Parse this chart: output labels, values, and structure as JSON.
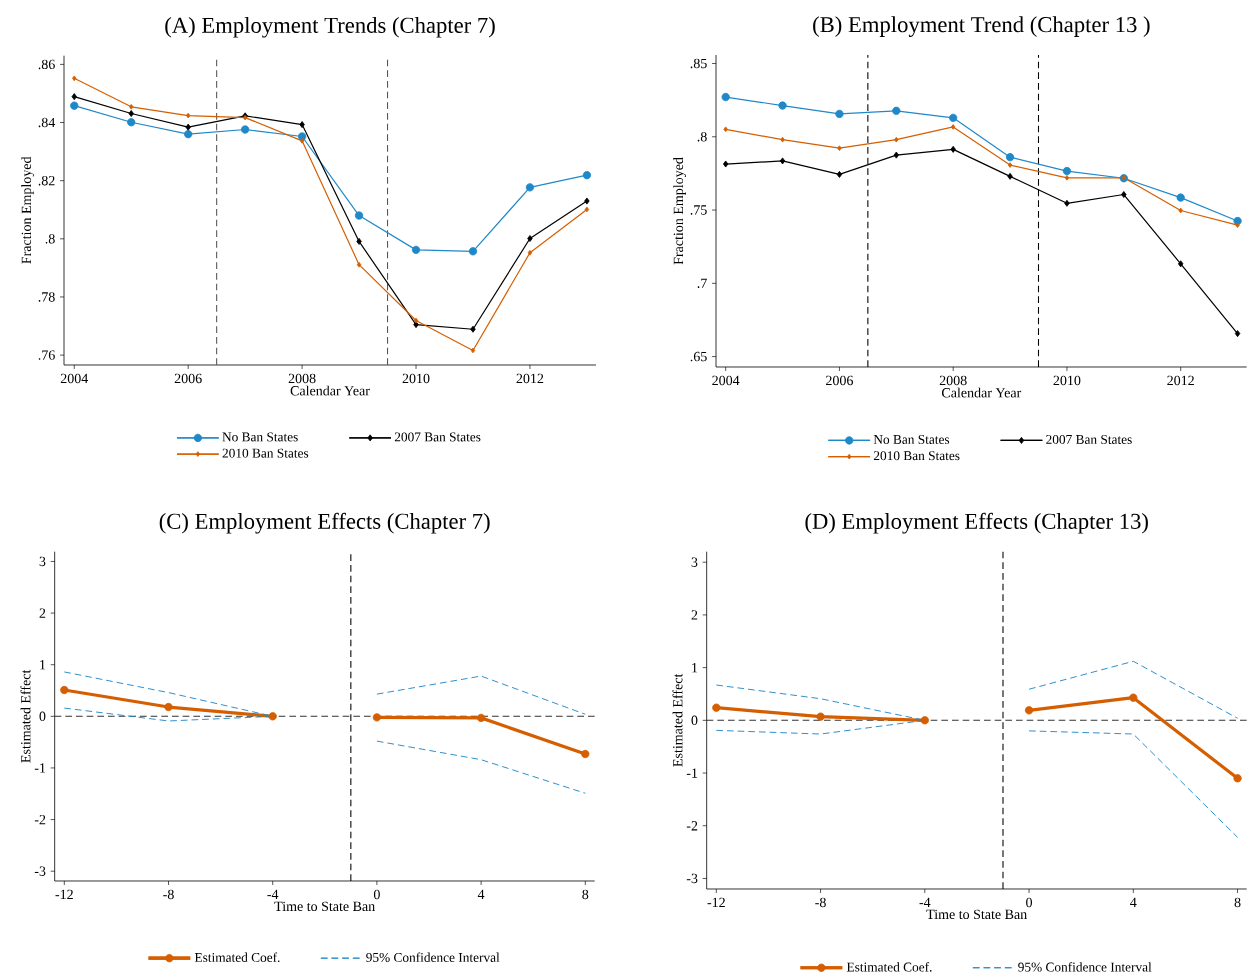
{
  "chart_data": [
    {
      "type": "line",
      "title": "(A) Employment Trends (Chapter 7)",
      "xlabel": "Calendar Year",
      "ylabel": "Fraction Employed",
      "x": [
        2004,
        2005,
        2006,
        2007,
        2008,
        2009,
        2010,
        2011,
        2012,
        2013
      ],
      "series": [
        {
          "name": "No Ban States",
          "color": "#1f88c9",
          "marker": "circle",
          "values": [
            0.8458,
            0.8401,
            0.836,
            0.8376,
            0.8352,
            0.808,
            0.7962,
            0.7957,
            0.8177,
            0.8219
          ]
        },
        {
          "name": "2007 Ban States",
          "color": "#000000",
          "marker": "diamond",
          "values": [
            0.8489,
            0.8431,
            0.8384,
            0.8423,
            0.8393,
            0.7991,
            0.7705,
            0.7689,
            0.8001,
            0.813
          ]
        },
        {
          "name": "2010 Ban States",
          "color": "#d55e00",
          "marker": "diamond",
          "values": [
            0.8552,
            0.8454,
            0.8424,
            0.8417,
            0.8337,
            0.7911,
            0.7719,
            0.7616,
            0.7952,
            0.8101
          ]
        }
      ],
      "xlim": [
        2003.82,
        2013.16
      ],
      "ylim": [
        0.7566,
        0.863
      ],
      "xticks": [
        2004,
        2006,
        2008,
        2010,
        2012
      ],
      "yticks": [
        {
          "value": 0.76,
          "label": ".76"
        },
        {
          "value": 0.78,
          "label": ".78"
        },
        {
          "value": 0.8,
          "label": ".8"
        },
        {
          "value": 0.82,
          "label": ".82"
        },
        {
          "value": 0.84,
          "label": ".84"
        },
        {
          "value": 0.86,
          "label": ".86"
        }
      ],
      "ref_lines": [
        {
          "axis": "x",
          "value": 2006.5,
          "color": "#555555",
          "line_style": "dashed"
        },
        {
          "axis": "x",
          "value": 2009.5,
          "color": "#555555",
          "line_style": "dashed"
        }
      ],
      "legend": "bottom"
    },
    {
      "type": "line",
      "title": "(B) Employment Trend (Chapter 13 )",
      "xlabel": "Calendar Year",
      "ylabel": "Fraction Employed",
      "x": [
        2004,
        2005,
        2006,
        2007,
        2008,
        2009,
        2010,
        2011,
        2012,
        2013
      ],
      "series": [
        {
          "name": "No Ban States",
          "color": "#1f88c9",
          "marker": "circle",
          "values": [
            0.8271,
            0.8213,
            0.8156,
            0.8177,
            0.8129,
            0.7861,
            0.7766,
            0.7717,
            0.7585,
            0.7425
          ]
        },
        {
          "name": "2007 Ban States",
          "color": "#000000",
          "marker": "diamond",
          "values": [
            0.7814,
            0.7835,
            0.7743,
            0.7875,
            0.7914,
            0.773,
            0.7546,
            0.7606,
            0.7133,
            0.6657
          ]
        },
        {
          "name": "2010 Ban States",
          "color": "#d55e00",
          "marker": "diamond",
          "values": [
            0.8051,
            0.798,
            0.7922,
            0.798,
            0.8067,
            0.7807,
            0.772,
            0.772,
            0.7497,
            0.7397
          ]
        }
      ],
      "xlim": [
        2003.83,
        2013.16
      ],
      "ylim": [
        0.6429,
        0.8558
      ],
      "xticks": [
        2004,
        2006,
        2008,
        2010,
        2012
      ],
      "yticks": [
        {
          "value": 0.65,
          "label": ".65"
        },
        {
          "value": 0.7,
          "label": ".7"
        },
        {
          "value": 0.75,
          "label": ".75"
        },
        {
          "value": 0.8,
          "label": ".8"
        },
        {
          "value": 0.85,
          "label": ".85"
        }
      ],
      "ref_lines": [
        {
          "axis": "x",
          "value": 2006.5,
          "color": "#000000",
          "line_style": "dashed"
        },
        {
          "axis": "x",
          "value": 2009.5,
          "color": "#000000",
          "line_style": "dashed"
        }
      ],
      "legend": "bottom"
    },
    {
      "type": "line",
      "title": "(C) Employment Effects (Chapter 7)",
      "xlabel": "Time to State Ban",
      "ylabel": "Estimated Effect",
      "x": [
        -12,
        -8,
        -4,
        -1,
        0,
        4,
        8
      ],
      "series": [
        {
          "name": "Estimated Coef.",
          "color": "#d55e00",
          "marker": "circle",
          "line_style": "solid",
          "values": [
            0.51,
            0.18,
            0.0,
            null,
            -0.02,
            -0.03,
            -0.73
          ]
        },
        {
          "name": "95% Confidence Interval",
          "color": "#1f88c9",
          "marker": "none",
          "line_style": "dashed",
          "values": [
            0.86,
            0.46,
            0.0,
            null,
            0.43,
            0.78,
            0.04
          ]
        },
        {
          "color": "#1f88c9",
          "marker": "none",
          "line_style": "dashed",
          "values": [
            0.16,
            -0.09,
            0.0,
            null,
            -0.48,
            -0.84,
            -1.49
          ]
        }
      ],
      "xlim": [
        -12.37,
        8.36
      ],
      "ylim": [
        -3.19,
        3.19
      ],
      "xticks": [
        -12,
        -8,
        -4,
        0,
        4,
        8
      ],
      "yticks": [
        -3,
        -2,
        -1,
        0,
        1,
        2,
        3
      ],
      "ref_lines": [
        {
          "axis": "x",
          "value": -1,
          "color": "#000000",
          "line_style": "dashed"
        },
        {
          "axis": "y",
          "value": 0,
          "color": "#333333",
          "line_style": "dashed"
        }
      ],
      "legend": "bottom"
    },
    {
      "type": "line",
      "title": "(D) Employment Effects (Chapter 13)",
      "xlabel": "Time to State Ban",
      "ylabel": "Estimated Effect",
      "x": [
        -12,
        -8,
        -4,
        -1,
        0,
        4,
        8
      ],
      "series": [
        {
          "name": "Estimated Coef.",
          "color": "#d55e00",
          "marker": "circle",
          "line_style": "solid",
          "values": [
            0.24,
            0.07,
            0.0,
            null,
            0.19,
            0.43,
            -1.1
          ]
        },
        {
          "name": "95% Confidence Interval",
          "color": "#1f88c9",
          "marker": "none",
          "line_style": "dashed",
          "values": [
            0.67,
            0.41,
            0.0,
            null,
            0.59,
            1.12,
            0.04
          ]
        },
        {
          "color": "#1f88c9",
          "marker": "none",
          "line_style": "dashed",
          "values": [
            -0.19,
            -0.26,
            0.0,
            null,
            -0.2,
            -0.26,
            -2.22
          ]
        }
      ],
      "xlim": [
        -12.37,
        8.35
      ],
      "ylim": [
        -3.2,
        3.2
      ],
      "xticks": [
        -12,
        -8,
        -4,
        0,
        4,
        8
      ],
      "yticks": [
        -3,
        -2,
        -1,
        0,
        1,
        2,
        3
      ],
      "ref_lines": [
        {
          "axis": "x",
          "value": -1,
          "color": "#000000",
          "line_style": "dashed"
        },
        {
          "axis": "y",
          "value": 0,
          "color": "#333333",
          "line_style": "dashed"
        }
      ],
      "legend": "bottom"
    }
  ]
}
